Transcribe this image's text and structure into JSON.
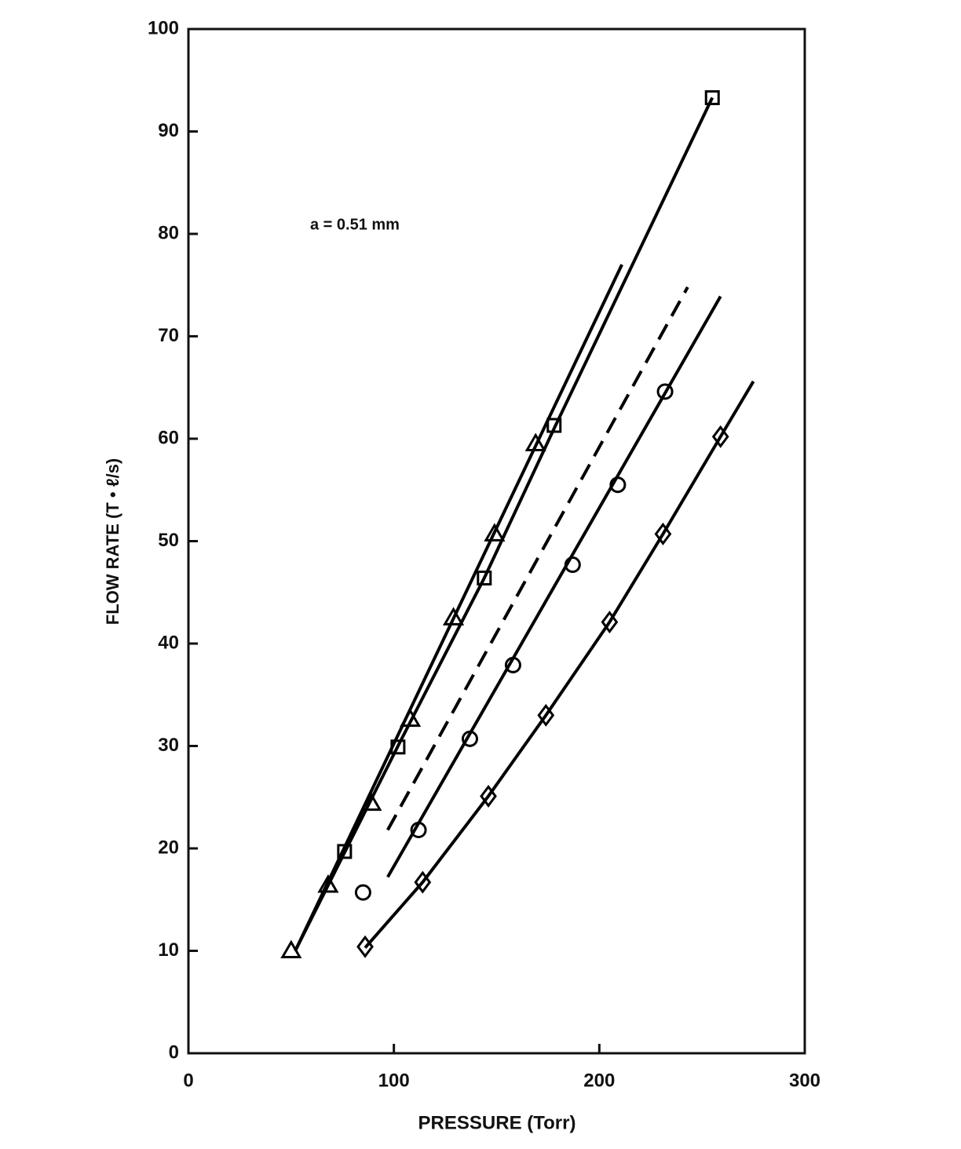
{
  "chart_data": {
    "type": "line",
    "xlabel": "PRESSURE (Torr)",
    "ylabel": "FLOW RATE (T • ℓ/s)",
    "annotation": "a = 0.51 mm",
    "xlim": [
      0,
      300
    ],
    "xticks": [
      0,
      100,
      200,
      300
    ],
    "ylim": [
      0,
      100
    ],
    "yticks": [
      0,
      10,
      20,
      30,
      40,
      50,
      60,
      70,
      80,
      90,
      100
    ],
    "grid": false,
    "series": [
      {
        "color": "#000000",
        "marker": "triangle",
        "line": "none",
        "x": [
          50,
          68,
          89,
          108,
          129,
          149,
          169
        ],
        "values": [
          10,
          16.4,
          24.4,
          32.6,
          42.5,
          50.7,
          59.5
        ]
      },
      {
        "color": "#000000",
        "marker": "square",
        "line": "none",
        "x": [
          76,
          102,
          144,
          178,
          255
        ],
        "values": [
          19.7,
          29.9,
          46.4,
          61.3,
          93.3
        ]
      },
      {
        "color": "#000000",
        "marker": "circle",
        "line": "none",
        "x": [
          85,
          112,
          137,
          158,
          187,
          209,
          232
        ],
        "values": [
          15.7,
          21.8,
          30.7,
          37.9,
          47.7,
          55.5,
          64.6
        ]
      },
      {
        "color": "#000000",
        "marker": "diamond",
        "line": "none",
        "x": [
          86,
          114,
          146,
          174,
          205,
          231,
          259
        ],
        "values": [
          10.4,
          16.7,
          25.1,
          33,
          42.1,
          50.7,
          60.2
        ]
      },
      {
        "color": "#000000",
        "marker": "none",
        "line": "solid",
        "x": [
          52,
          211
        ],
        "values": [
          10,
          77
        ]
      },
      {
        "color": "#000000",
        "marker": "none",
        "line": "solid",
        "x": [
          52,
          102,
          144,
          178,
          255
        ],
        "values": [
          10,
          30,
          46.4,
          61,
          93.3
        ]
      },
      {
        "color": "#000000",
        "marker": "none",
        "line": "dashed",
        "x": [
          97,
          243
        ],
        "values": [
          21.8,
          74.8
        ]
      },
      {
        "color": "#000000",
        "marker": "none",
        "line": "solid",
        "x": [
          97,
          259
        ],
        "values": [
          17.2,
          73.9
        ]
      },
      {
        "color": "#000000",
        "marker": "none",
        "line": "solid",
        "x": [
          86,
          114,
          146,
          174,
          205,
          231,
          259,
          275
        ],
        "values": [
          10.3,
          16.7,
          25.1,
          33,
          42.1,
          50.7,
          60.2,
          65.6
        ]
      }
    ]
  }
}
